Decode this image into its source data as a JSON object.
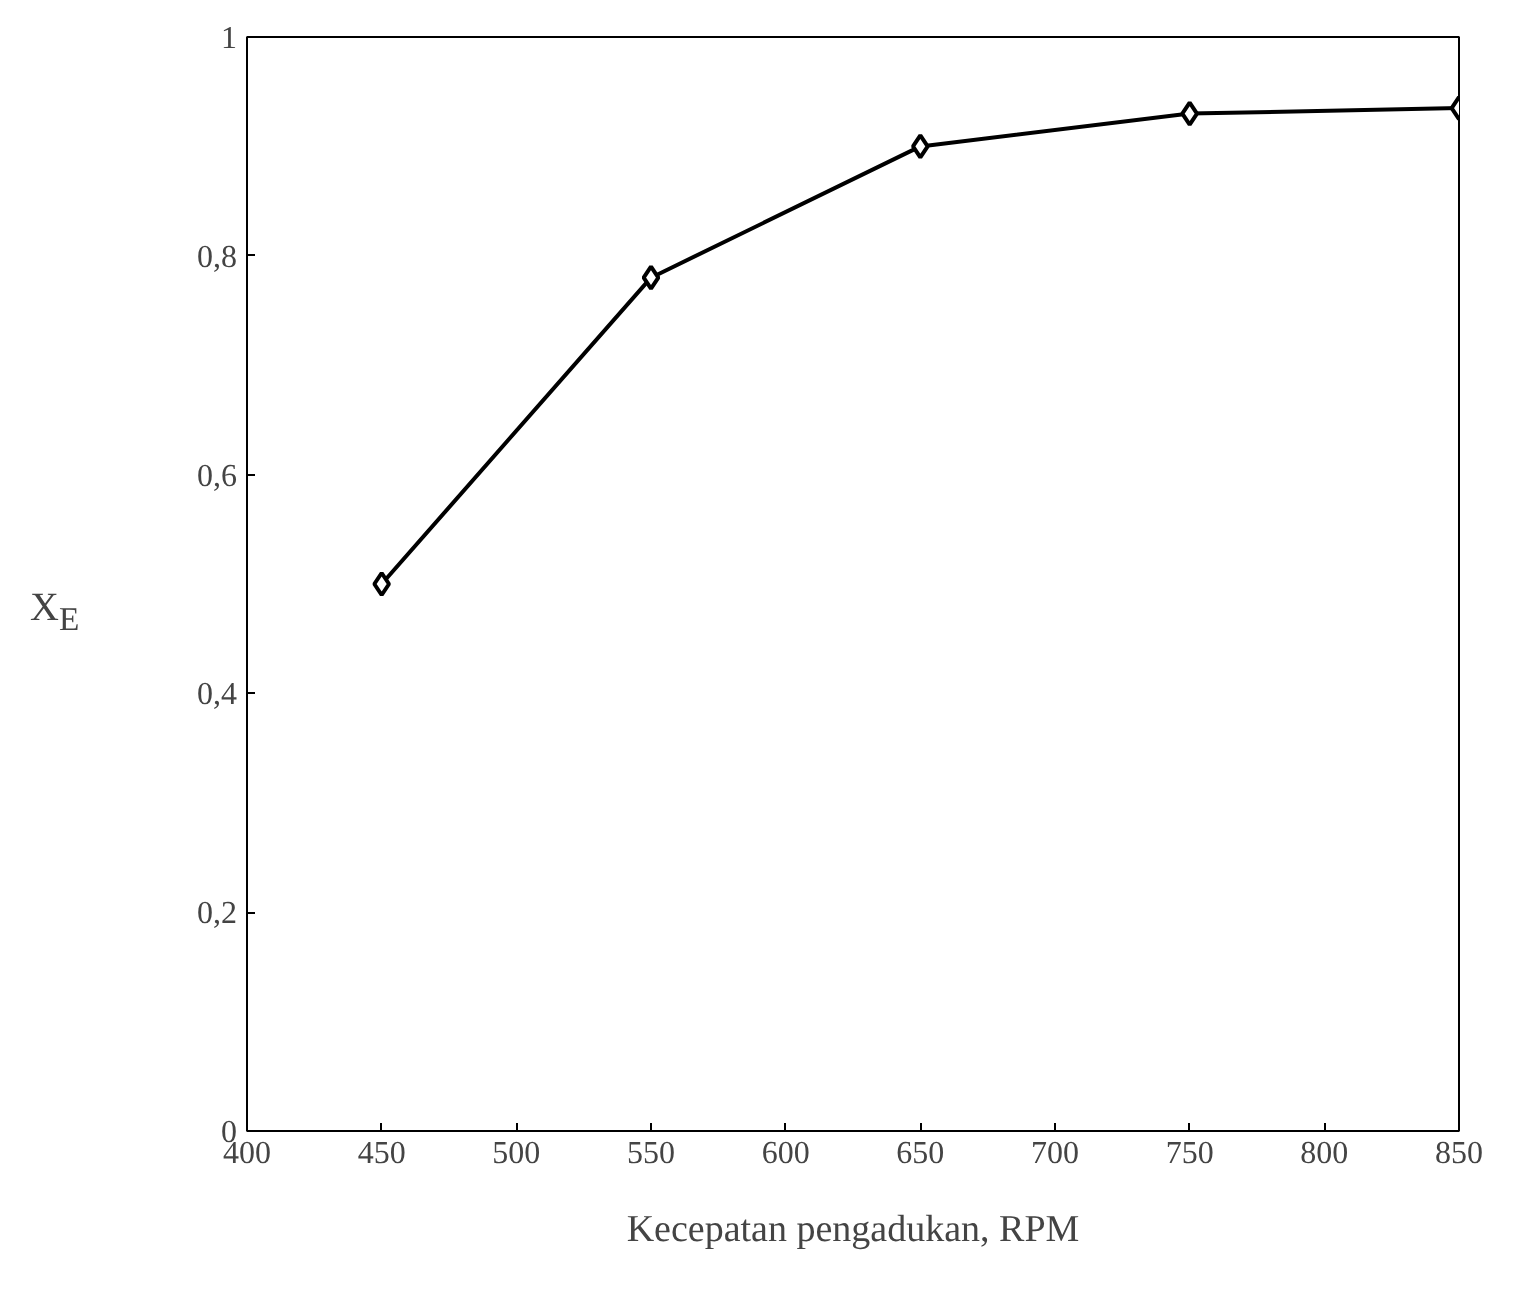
{
  "chart_data": {
    "type": "line",
    "xlabel": "Kecepatan pengadukan, RPM",
    "ylabel": "X$_{E}$",
    "x": [
      450,
      550,
      650,
      750,
      850
    ],
    "series": [
      {
        "color": "#000000",
        "values": [
          0.5,
          0.78,
          0.9,
          0.93,
          0.935
        ]
      }
    ],
    "xlim": [
      400,
      850
    ],
    "xticks": [
      400,
      450,
      500,
      550,
      600,
      650,
      700,
      750,
      800,
      850
    ],
    "ylim": [
      0,
      1
    ],
    "yticks": [
      {
        "value": 0,
        "label": "0"
      },
      {
        "value": 0.2,
        "label": "0,2"
      },
      {
        "value": 0.4,
        "label": "0,4"
      },
      {
        "value": 0.6,
        "label": "0,6"
      },
      {
        "value": 0.8,
        "label": "0,8"
      },
      {
        "value": 1,
        "label": "1"
      }
    ],
    "grid": false,
    "marker": "diamond",
    "line_style": "solid"
  }
}
